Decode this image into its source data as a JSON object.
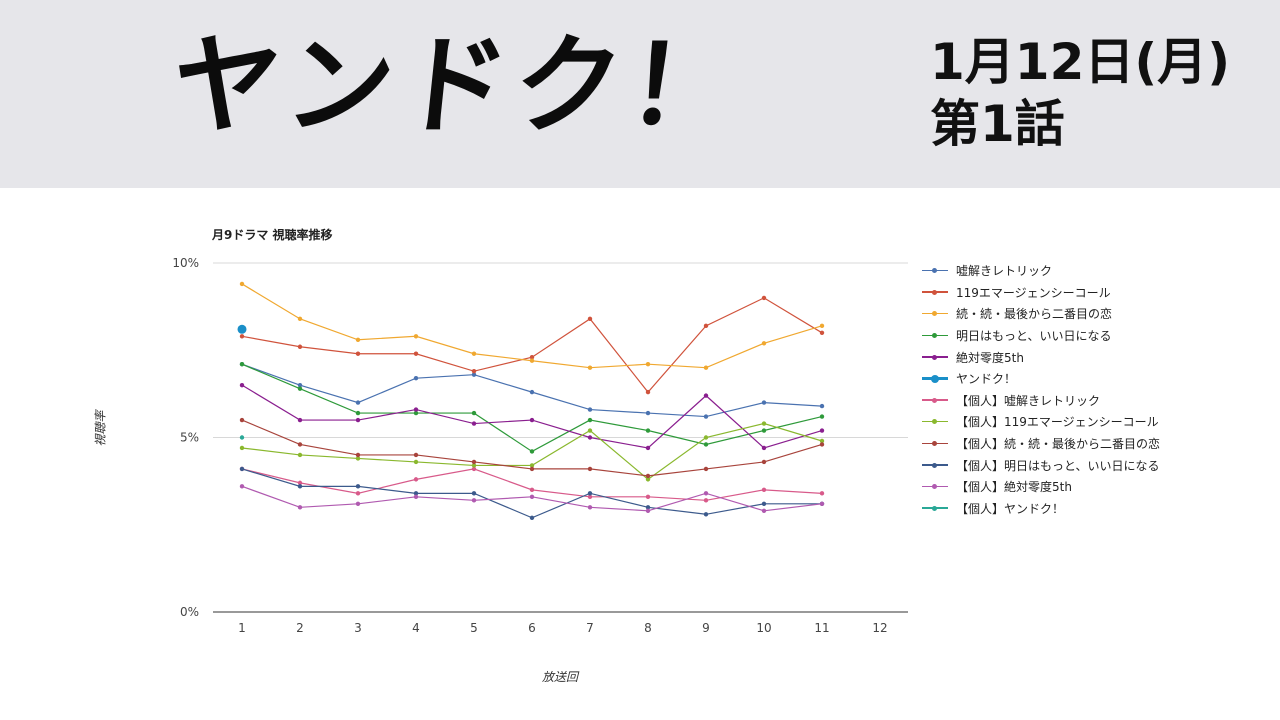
{
  "header": {
    "show_title": "ヤンドク！",
    "air_date": "1月12日(月)",
    "episode": "第1話"
  },
  "chart_data": {
    "type": "line",
    "title": "月9ドラマ 視聴率推移",
    "xlabel": "放送回",
    "ylabel": "視聴率",
    "categories": [
      "1",
      "2",
      "3",
      "4",
      "5",
      "6",
      "7",
      "8",
      "9",
      "10",
      "11",
      "12"
    ],
    "ylim": [
      0,
      10
    ],
    "yticks": [
      "0%",
      "5%",
      "10%"
    ],
    "grid": true,
    "legend_position": "right",
    "series": [
      {
        "name": "嘘解きレトリック",
        "color": "#4a72b0",
        "values": [
          7.1,
          6.5,
          6.0,
          6.7,
          6.8,
          6.3,
          5.8,
          5.7,
          5.6,
          6.0,
          5.9,
          null
        ]
      },
      {
        "name": "119エマージェンシーコール",
        "color": "#d0533c",
        "values": [
          7.9,
          7.6,
          7.4,
          7.4,
          6.9,
          7.3,
          8.4,
          6.3,
          8.2,
          9.0,
          8.0,
          null
        ]
      },
      {
        "name": "続・続・最後から二番目の恋",
        "color": "#f0a830",
        "values": [
          9.4,
          8.4,
          7.8,
          7.9,
          7.4,
          7.2,
          7.0,
          7.1,
          7.0,
          7.7,
          8.2,
          null
        ]
      },
      {
        "name": "明日はもっと、いい日になる",
        "color": "#2e9a3a",
        "values": [
          7.1,
          6.4,
          5.7,
          5.7,
          5.7,
          4.6,
          5.5,
          5.2,
          4.8,
          5.2,
          5.6,
          null
        ]
      },
      {
        "name": "絶対零度5th",
        "color": "#8a1f8f",
        "values": [
          6.5,
          5.5,
          5.5,
          5.8,
          5.4,
          5.5,
          5.0,
          4.7,
          6.2,
          4.7,
          5.2,
          null
        ]
      },
      {
        "name": "ヤンドク！",
        "color": "#1a8fc8",
        "highlight": true,
        "values": [
          8.1,
          null,
          null,
          null,
          null,
          null,
          null,
          null,
          null,
          null,
          null,
          null
        ]
      },
      {
        "name": "【個人】嘘解きレトリック",
        "color": "#d85a8a",
        "values": [
          4.1,
          3.7,
          3.4,
          3.8,
          4.1,
          3.5,
          3.3,
          3.3,
          3.2,
          3.5,
          3.4,
          null
        ]
      },
      {
        "name": "【個人】119エマージェンシーコール",
        "color": "#8ab82e",
        "values": [
          4.7,
          4.5,
          4.4,
          4.3,
          4.2,
          4.2,
          5.2,
          3.8,
          5.0,
          5.4,
          4.9,
          null
        ]
      },
      {
        "name": "【個人】続・続・最後から二番目の恋",
        "color": "#a8443c",
        "values": [
          5.5,
          4.8,
          4.5,
          4.5,
          4.3,
          4.1,
          4.1,
          3.9,
          4.1,
          4.3,
          4.8,
          null
        ]
      },
      {
        "name": "【個人】明日はもっと、いい日になる",
        "color": "#3c5a8c",
        "values": [
          4.1,
          3.6,
          3.6,
          3.4,
          3.4,
          2.7,
          3.4,
          3.0,
          2.8,
          3.1,
          3.1,
          null
        ]
      },
      {
        "name": "【個人】絶対零度5th",
        "color": "#b05ab0",
        "values": [
          3.6,
          3.0,
          3.1,
          3.3,
          3.2,
          3.3,
          3.0,
          2.9,
          3.4,
          2.9,
          3.1,
          null
        ]
      },
      {
        "name": "【個人】ヤンドク！",
        "color": "#2aa897",
        "values": [
          5.0,
          null,
          null,
          null,
          null,
          null,
          null,
          null,
          null,
          null,
          null,
          null
        ]
      }
    ]
  }
}
